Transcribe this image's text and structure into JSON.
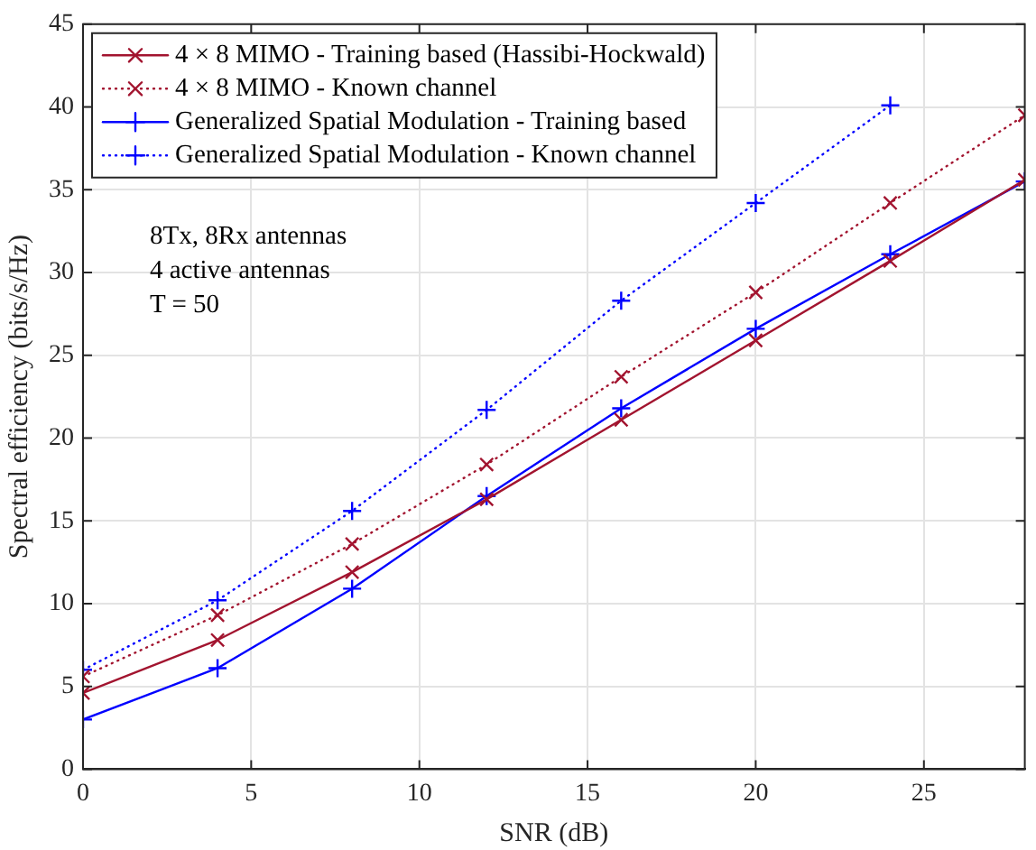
{
  "chart_data": {
    "type": "line",
    "xlabel": "SNR (dB)",
    "ylabel": "Spectral efficiency (bits/s/Hz)",
    "x": [
      0,
      4,
      8,
      12,
      16,
      20,
      24,
      28
    ],
    "series": [
      {
        "name": "4 × 8 MIMO - Training based (Hassibi-Hockwald)",
        "color": "#a2142f",
        "marker": "cross",
        "line_style": "solid",
        "values": [
          4.6,
          7.8,
          11.9,
          16.3,
          21.1,
          25.9,
          30.7,
          35.6
        ]
      },
      {
        "name": "4 × 8 MIMO - Known channel",
        "color": "#a2142f",
        "marker": "cross",
        "line_style": "dotted",
        "values": [
          5.6,
          9.3,
          13.6,
          18.4,
          23.7,
          28.8,
          34.2,
          39.5
        ]
      },
      {
        "name": "Generalized Spatial Modulation - Training based",
        "color": "#0000ff",
        "marker": "plus",
        "line_style": "solid",
        "values": [
          3.0,
          6.1,
          10.9,
          16.5,
          21.8,
          26.6,
          31.1,
          35.5
        ]
      },
      {
        "name": "Generalized Spatial Modulation - Known channel",
        "color": "#0000ff",
        "marker": "plus",
        "line_style": "dotted",
        "values": [
          6.0,
          10.2,
          15.6,
          21.7,
          28.3,
          34.2,
          40.1,
          null
        ]
      }
    ],
    "xlim": [
      0,
      28
    ],
    "xticks": [
      0,
      5,
      10,
      15,
      20,
      25
    ],
    "ylim": [
      0,
      45
    ],
    "yticks": [
      0,
      5,
      10,
      15,
      20,
      25,
      30,
      35,
      40,
      45
    ],
    "grid": true,
    "legend": "top left",
    "annotations": [
      "8Tx, 8Rx antennas",
      "4 active antennas",
      "T = 50"
    ]
  }
}
